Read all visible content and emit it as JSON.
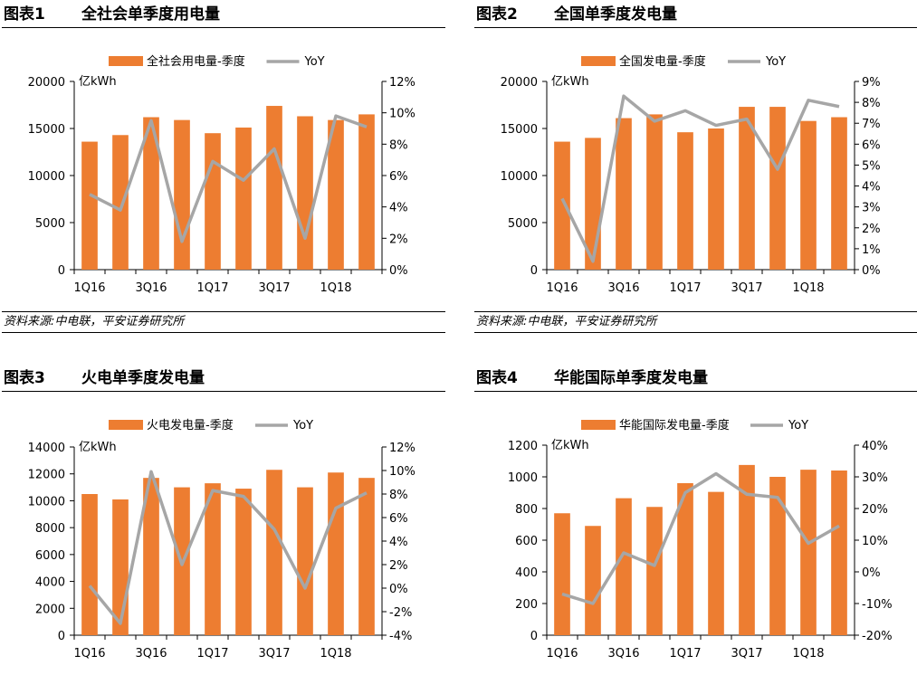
{
  "colors": {
    "bar": "#ED7D31",
    "line": "#A6A6A6"
  },
  "panels": [
    {
      "label": "图表1",
      "title": "全社会单季度用电量",
      "source": "资料来源:中电联，平安证券研究所",
      "chart_data": {
        "type": "bar",
        "unit_label": "亿kWh",
        "categories": [
          "1Q16",
          "2Q16",
          "3Q16",
          "4Q16",
          "1Q17",
          "2Q17",
          "3Q17",
          "4Q17",
          "1Q18",
          "2Q18"
        ],
        "x_tick_labels": [
          "1Q16",
          "",
          "3Q16",
          "",
          "1Q17",
          "",
          "3Q17",
          "",
          "1Q18",
          ""
        ],
        "y_left": {
          "min": 0,
          "max": 20000,
          "ticks": [
            "0",
            "5000",
            "10000",
            "15000",
            "20000"
          ]
        },
        "y_right": {
          "min": 0,
          "max": 12,
          "ticks": [
            "0%",
            "2%",
            "4%",
            "6%",
            "8%",
            "10%",
            "12%"
          ]
        },
        "series": [
          {
            "name": "全社会用电量-季度",
            "kind": "bar",
            "axis": "left",
            "values": [
              13600,
              14300,
              16200,
              15900,
              14500,
              15100,
              17400,
              16300,
              15900,
              16500
            ]
          },
          {
            "name": "YoY",
            "kind": "line",
            "axis": "right",
            "values": [
              4.8,
              3.8,
              9.5,
              1.8,
              6.9,
              5.7,
              7.7,
              2.0,
              9.8,
              9.1
            ]
          }
        ],
        "legend": "top"
      }
    },
    {
      "label": "图表2",
      "title": "全国单季度发电量",
      "source": "资料来源:中电联，平安证券研究所",
      "chart_data": {
        "type": "bar",
        "unit_label": "亿kWh",
        "categories": [
          "1Q16",
          "2Q16",
          "3Q16",
          "4Q16",
          "1Q17",
          "2Q17",
          "3Q17",
          "4Q17",
          "1Q18",
          "2Q18"
        ],
        "x_tick_labels": [
          "1Q16",
          "",
          "3Q16",
          "",
          "1Q17",
          "",
          "3Q17",
          "",
          "1Q18",
          ""
        ],
        "y_left": {
          "min": 0,
          "max": 20000,
          "ticks": [
            "0",
            "5000",
            "10000",
            "15000",
            "20000"
          ]
        },
        "y_right": {
          "min": 0,
          "max": 9,
          "ticks": [
            "0%",
            "1%",
            "2%",
            "3%",
            "4%",
            "5%",
            "6%",
            "7%",
            "8%",
            "9%"
          ]
        },
        "series": [
          {
            "name": "全国发电量-季度",
            "kind": "bar",
            "axis": "left",
            "values": [
              13600,
              14000,
              16100,
              16500,
              14600,
              15000,
              17300,
              17300,
              15800,
              16200
            ]
          },
          {
            "name": "YoY",
            "kind": "line",
            "axis": "right",
            "values": [
              3.4,
              0.4,
              8.3,
              7.1,
              7.6,
              6.9,
              7.2,
              4.8,
              8.1,
              7.8
            ]
          }
        ],
        "legend": "top"
      }
    },
    {
      "label": "图表3",
      "title": "火电单季度发电量",
      "source": "",
      "chart_data": {
        "type": "bar",
        "unit_label": "亿kWh",
        "categories": [
          "1Q16",
          "2Q16",
          "3Q16",
          "4Q16",
          "1Q17",
          "2Q17",
          "3Q17",
          "4Q17",
          "1Q18",
          "2Q18"
        ],
        "x_tick_labels": [
          "1Q16",
          "",
          "3Q16",
          "",
          "1Q17",
          "",
          "3Q17",
          "",
          "1Q18",
          ""
        ],
        "y_left": {
          "min": 0,
          "max": 14000,
          "ticks": [
            "0",
            "2000",
            "4000",
            "6000",
            "8000",
            "10000",
            "12000",
            "14000"
          ]
        },
        "y_right": {
          "min": -4,
          "max": 12,
          "ticks": [
            "-4%",
            "-2%",
            "0%",
            "2%",
            "4%",
            "6%",
            "8%",
            "10%",
            "12%"
          ]
        },
        "series": [
          {
            "name": "火电发电量-季度",
            "kind": "bar",
            "axis": "left",
            "values": [
              10500,
              10100,
              11700,
              11000,
              11300,
              10900,
              12300,
              11000,
              12100,
              11700
            ]
          },
          {
            "name": "YoY",
            "kind": "line",
            "axis": "right",
            "values": [
              0.2,
              -3.0,
              9.9,
              2.0,
              8.3,
              7.8,
              5.0,
              0.0,
              6.8,
              8.1
            ]
          }
        ],
        "legend": "top"
      }
    },
    {
      "label": "图表4",
      "title": "华能国际单季度发电量",
      "source": "",
      "chart_data": {
        "type": "bar",
        "unit_label": "亿kWh",
        "categories": [
          "1Q16",
          "2Q16",
          "3Q16",
          "4Q16",
          "1Q17",
          "2Q17",
          "3Q17",
          "4Q17",
          "1Q18",
          "2Q18"
        ],
        "x_tick_labels": [
          "1Q16",
          "",
          "3Q16",
          "",
          "1Q17",
          "",
          "3Q17",
          "",
          "1Q18",
          ""
        ],
        "y_left": {
          "min": 0,
          "max": 1200,
          "ticks": [
            "0",
            "200",
            "400",
            "600",
            "800",
            "1000",
            "1200"
          ]
        },
        "y_right": {
          "min": -20,
          "max": 40,
          "ticks": [
            "-20%",
            "-10%",
            "0%",
            "10%",
            "20%",
            "30%",
            "40%"
          ]
        },
        "series": [
          {
            "name": "华能国际发电量-季度",
            "kind": "bar",
            "axis": "left",
            "values": [
              770,
              690,
              865,
              810,
              960,
              905,
              1075,
              1000,
              1045,
              1040
            ]
          },
          {
            "name": "YoY",
            "kind": "line",
            "axis": "right",
            "values": [
              -7.0,
              -10.0,
              6.0,
              2.0,
              25.0,
              31.0,
              24.5,
              23.5,
              9.0,
              14.5
            ]
          }
        ],
        "legend": "top"
      }
    }
  ]
}
